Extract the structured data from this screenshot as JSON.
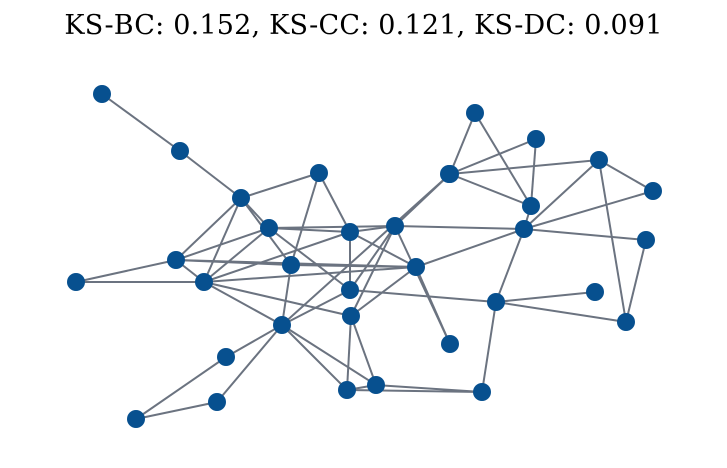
{
  "title": "KS-BC: 0.152, KS-CC: 0.121, KS-DC: 0.091",
  "colors": {
    "node": "#07508f",
    "edge": "#6b7380",
    "background": "#ffffff"
  },
  "graph": {
    "node_count": 34,
    "edges": [
      [
        0,
        1
      ],
      [
        1,
        2
      ],
      [
        2,
        3
      ],
      [
        2,
        4
      ],
      [
        2,
        5
      ],
      [
        2,
        6
      ],
      [
        3,
        7
      ],
      [
        3,
        8
      ],
      [
        3,
        9
      ],
      [
        3,
        10
      ],
      [
        4,
        5
      ],
      [
        4,
        6
      ],
      [
        5,
        6
      ],
      [
        5,
        11
      ],
      [
        5,
        7
      ],
      [
        5,
        8
      ],
      [
        6,
        7
      ],
      [
        6,
        10
      ],
      [
        6,
        8
      ],
      [
        6,
        14
      ],
      [
        6,
        12
      ],
      [
        7,
        8
      ],
      [
        8,
        13
      ],
      [
        8,
        11
      ],
      [
        9,
        13
      ],
      [
        9,
        10
      ],
      [
        10,
        11
      ],
      [
        10,
        12
      ],
      [
        10,
        17
      ],
      [
        11,
        17
      ],
      [
        11,
        12
      ],
      [
        11,
        15
      ],
      [
        11,
        14
      ],
      [
        12,
        16
      ],
      [
        13,
        14
      ],
      [
        13,
        15
      ],
      [
        14,
        15
      ],
      [
        14,
        16
      ],
      [
        14,
        19
      ],
      [
        15,
        16
      ],
      [
        15,
        20
      ],
      [
        16,
        20
      ],
      [
        17,
        18
      ],
      [
        18,
        19
      ],
      [
        12,
        20
      ],
      [
        12,
        21
      ],
      [
        21,
        22
      ],
      [
        22,
        23
      ],
      [
        23,
        24
      ],
      [
        21,
        23
      ],
      [
        24,
        25
      ],
      [
        22,
        26
      ],
      [
        22,
        27
      ],
      [
        23,
        26
      ],
      [
        24,
        27
      ],
      [
        25,
        26
      ],
      [
        25,
        27
      ],
      [
        26,
        28
      ],
      [
        26,
        29
      ],
      [
        27,
        28
      ],
      [
        28,
        30
      ],
      [
        28,
        31
      ],
      [
        26,
        30
      ],
      [
        30,
        31
      ],
      [
        29,
        32
      ],
      [
        32,
        33
      ],
      [
        29,
        33
      ]
    ]
  }
}
